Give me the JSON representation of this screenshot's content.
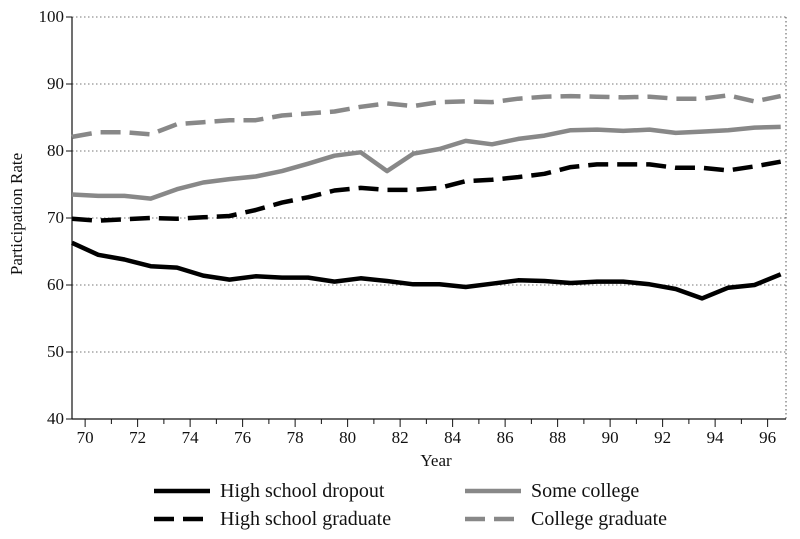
{
  "chart_data": {
    "type": "line",
    "xlabel": "Year",
    "ylabel": "Participation Rate",
    "xlim": [
      1969.5,
      1996.7
    ],
    "ylim": [
      40,
      100
    ],
    "x_ticks": [
      1970,
      1972,
      1974,
      1976,
      1978,
      1980,
      1982,
      1984,
      1986,
      1988,
      1990,
      1992,
      1994,
      1996
    ],
    "x_tick_labels": [
      "70",
      "72",
      "74",
      "76",
      "78",
      "80",
      "82",
      "84",
      "86",
      "88",
      "90",
      "92",
      "94",
      "96"
    ],
    "y_ticks": [
      40,
      50,
      60,
      70,
      80,
      90,
      100
    ],
    "y_tick_labels": [
      "40",
      "50",
      "60",
      "70",
      "80",
      "90",
      "100"
    ],
    "grid": "horizontal dotted",
    "legend_position": "bottom",
    "x": [
      1969.5,
      1970.5,
      1971.5,
      1972.5,
      1973.5,
      1974.5,
      1975.5,
      1976.5,
      1977.5,
      1978.5,
      1979.5,
      1980.5,
      1981.5,
      1982.5,
      1983.5,
      1984.5,
      1985.5,
      1986.5,
      1987.5,
      1988.5,
      1989.5,
      1990.5,
      1991.5,
      1992.5,
      1993.5,
      1994.5,
      1995.5,
      1996.5
    ],
    "series": [
      {
        "name": "High school dropout",
        "style": "solid",
        "color": "#000000",
        "values": [
          66.3,
          64.5,
          63.8,
          62.8,
          62.6,
          61.4,
          60.8,
          61.3,
          61.1,
          61.1,
          60.5,
          61.0,
          60.6,
          60.1,
          60.1,
          59.7,
          60.2,
          60.7,
          60.6,
          60.3,
          60.5,
          60.5,
          60.1,
          59.4,
          58.0,
          59.6,
          60.0,
          61.6
        ]
      },
      {
        "name": "High school graduate",
        "style": "dashed",
        "color": "#000000",
        "values": [
          69.9,
          69.6,
          69.8,
          70.0,
          69.9,
          70.1,
          70.3,
          71.2,
          72.3,
          73.1,
          74.1,
          74.5,
          74.2,
          74.2,
          74.5,
          75.5,
          75.7,
          76.1,
          76.6,
          77.6,
          78.0,
          78.0,
          78.0,
          77.5,
          77.5,
          77.1,
          77.7,
          78.4
        ]
      },
      {
        "name": "Some college",
        "style": "solid",
        "color": "#888888",
        "values": [
          73.5,
          73.3,
          73.3,
          72.9,
          74.3,
          75.3,
          75.8,
          76.2,
          77.0,
          78.1,
          79.3,
          79.8,
          77.0,
          79.6,
          80.3,
          81.5,
          81.0,
          81.8,
          82.3,
          83.1,
          83.2,
          83.0,
          83.2,
          82.7,
          82.9,
          83.1,
          83.5,
          83.6
        ]
      },
      {
        "name": "College graduate",
        "style": "dashed",
        "color": "#888888",
        "values": [
          82.1,
          82.8,
          82.8,
          82.5,
          84.0,
          84.3,
          84.6,
          84.6,
          85.3,
          85.6,
          85.9,
          86.6,
          87.1,
          86.7,
          87.3,
          87.4,
          87.3,
          87.8,
          88.1,
          88.2,
          88.1,
          88.0,
          88.1,
          87.8,
          87.8,
          88.3,
          87.4,
          88.2
        ]
      }
    ]
  }
}
